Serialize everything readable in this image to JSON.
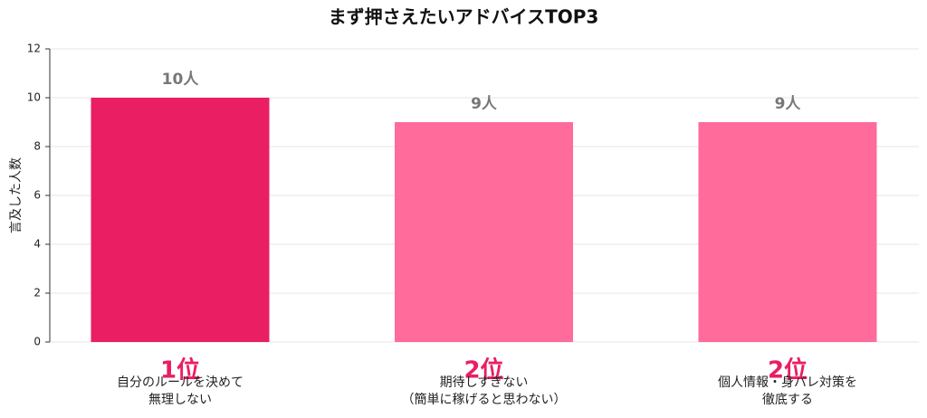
{
  "chart_data": {
    "type": "bar",
    "title": "まず押さえたいアドバイスTOP3",
    "y_label": "言及した人数",
    "categories": [
      "自分のルールを決めて\n無理しない",
      "期待しすぎない\n（簡単に稼げると思わない）",
      "個人情報・身バレ対策を\n徹底する"
    ],
    "values": [
      10,
      9,
      9
    ],
    "value_labels": [
      "10人",
      "9人",
      "9人"
    ],
    "rank_labels": [
      "1位",
      "2位",
      "2位"
    ],
    "rank_color": "#e91e63",
    "colors": [
      "#e91e63",
      "#ff6b9a",
      "#ff6b9a"
    ],
    "ylim": [
      0,
      12
    ],
    "yticks": [
      0,
      2,
      4,
      6,
      8,
      10,
      12
    ],
    "grid": true
  }
}
